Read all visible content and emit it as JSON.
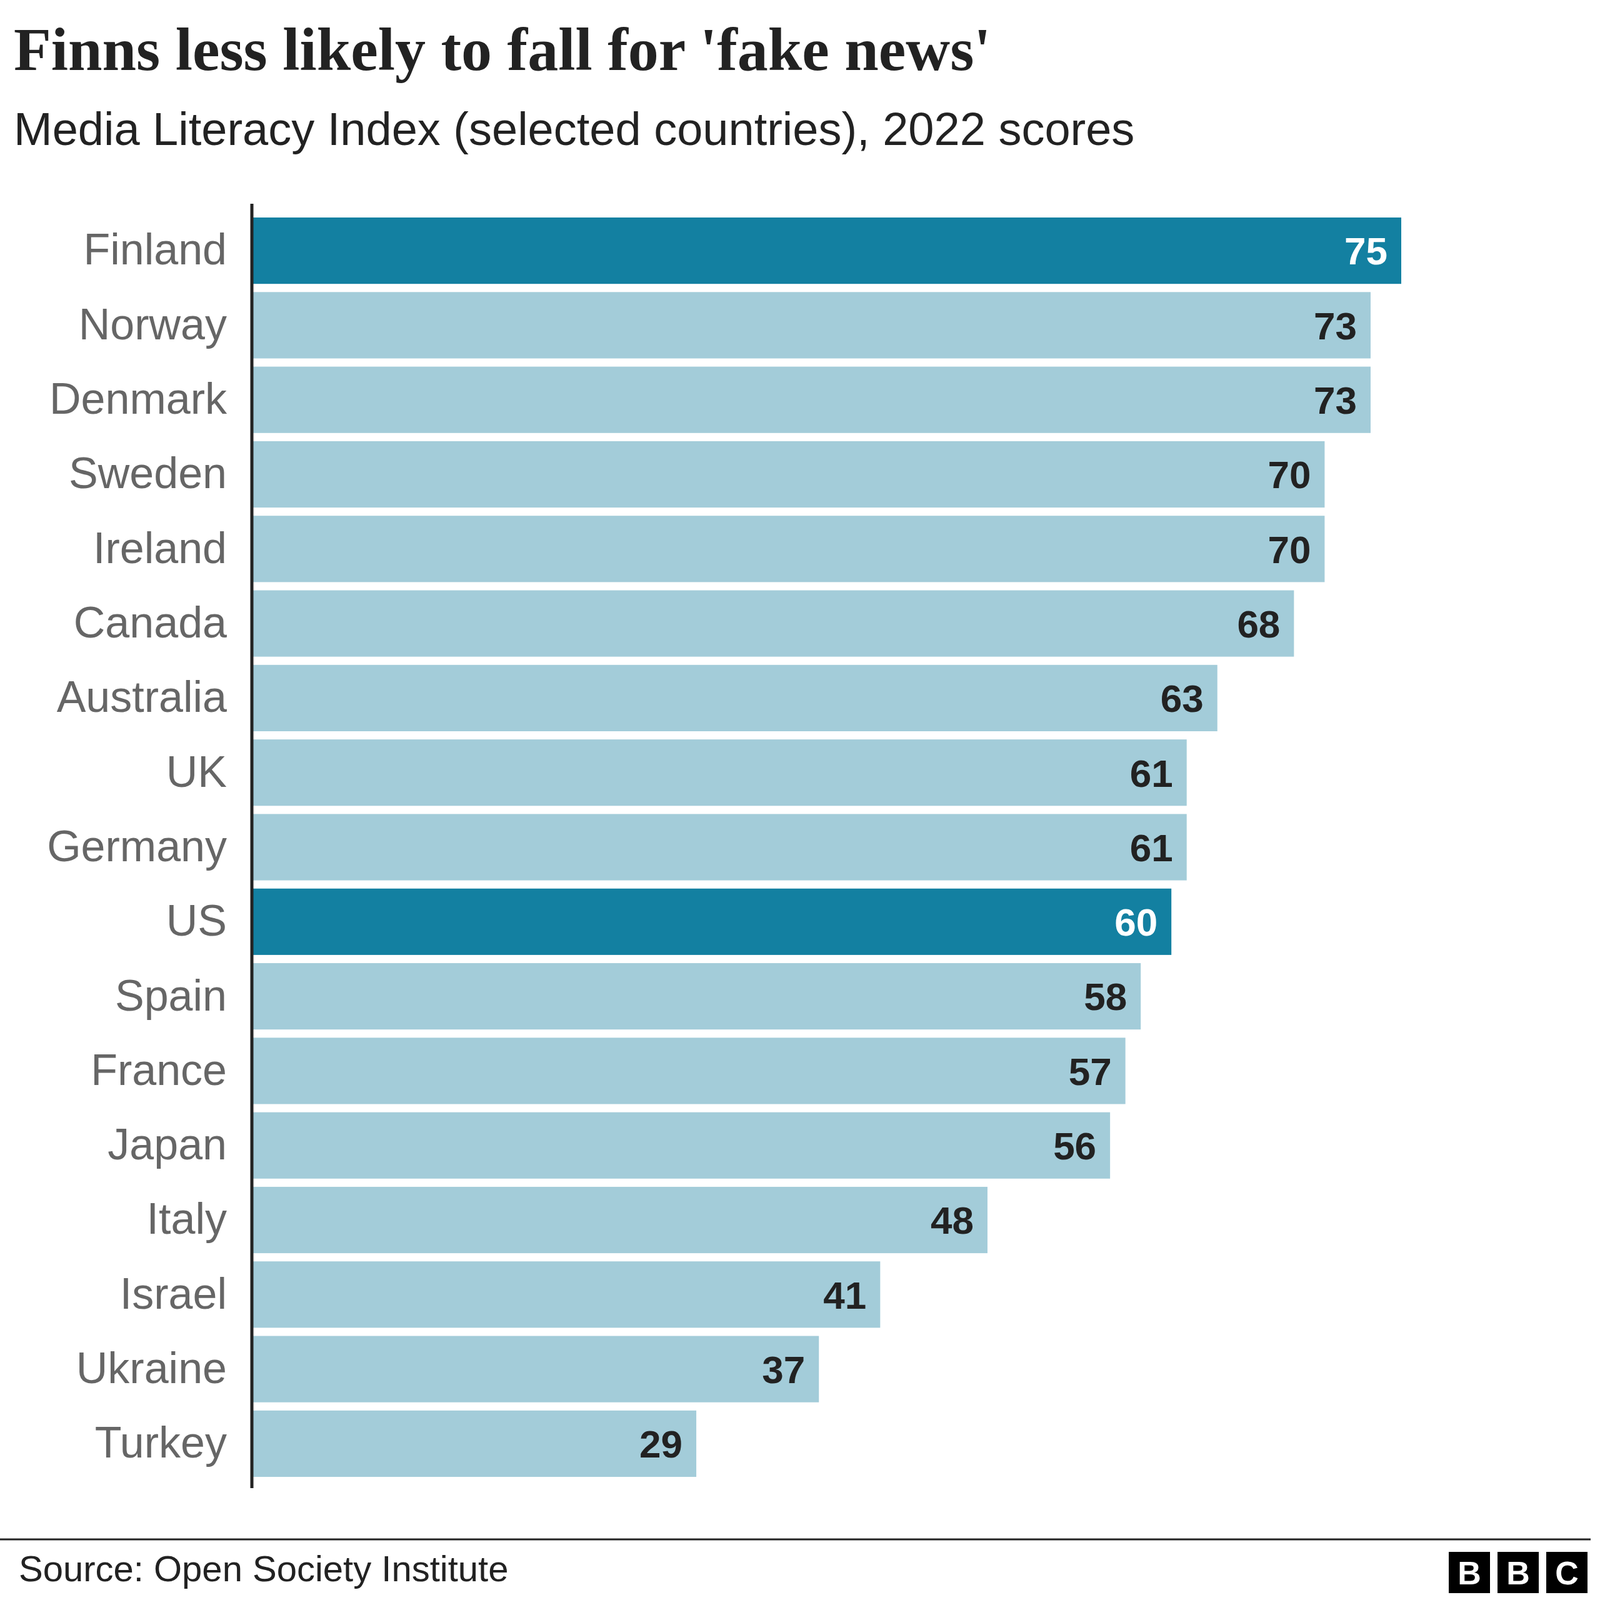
{
  "chart_data": {
    "type": "bar",
    "orientation": "horizontal",
    "title": "Finns less likely to fall for 'fake news'",
    "subtitle": "Media Literacy Index (selected countries), 2022 scores",
    "categories": [
      "Finland",
      "Norway",
      "Denmark",
      "Sweden",
      "Ireland",
      "Canada",
      "Australia",
      "UK",
      "Germany",
      "US",
      "Spain",
      "France",
      "Japan",
      "Italy",
      "Israel",
      "Ukraine",
      "Turkey"
    ],
    "values": [
      75,
      73,
      73,
      70,
      70,
      68,
      63,
      61,
      61,
      60,
      58,
      57,
      56,
      48,
      41,
      37,
      29
    ],
    "colors": [
      "#1380a1",
      "#a3ccd9",
      "#a3ccd9",
      "#a3ccd9",
      "#a3ccd9",
      "#a3ccd9",
      "#a3ccd9",
      "#a3ccd9",
      "#a3ccd9",
      "#1380a1",
      "#a3ccd9",
      "#a3ccd9",
      "#a3ccd9",
      "#a3ccd9",
      "#a3ccd9",
      "#a3ccd9",
      "#a3ccd9"
    ],
    "xlim": [
      0,
      75
    ],
    "data_labels": true,
    "tick_labels": false,
    "grid": false,
    "source": "Source: Open Society Institute",
    "logo": [
      "B",
      "B",
      "C"
    ]
  }
}
